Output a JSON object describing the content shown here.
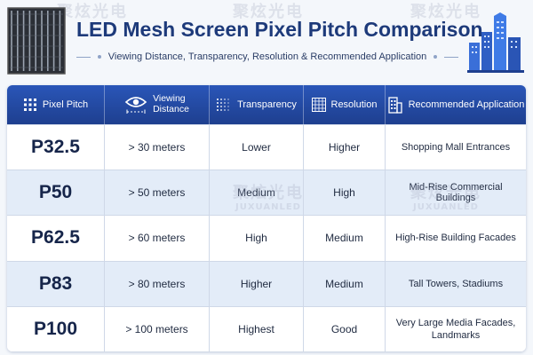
{
  "header": {
    "title": "LED Mesh Screen Pixel Pitch Comparison",
    "subtitle": "Viewing Distance, Transparency, Resolution & Recommended Application"
  },
  "watermark": {
    "zh": "聚炫光电",
    "en": "JUXUANLED"
  },
  "columns": [
    {
      "label": "Pixel Pitch",
      "icon": "led-grid-icon"
    },
    {
      "label_line1": "Viewing",
      "label_line2": "Distance",
      "icon": "eye-icon"
    },
    {
      "label": "Transparency",
      "icon": "transparency-dots-icon"
    },
    {
      "label": "Resolution",
      "icon": "resolution-grid-icon"
    },
    {
      "label": "Recommended Application",
      "icon": "building-icon"
    }
  ],
  "rows": [
    {
      "pitch": "P32.5",
      "distance": "> 30 meters",
      "transparency": "Lower",
      "resolution": "Higher",
      "application": "Shopping Mall Entrances"
    },
    {
      "pitch": "P50",
      "distance": "> 50 meters",
      "transparency": "Medium",
      "resolution": "High",
      "application": "Mid-Rise Commercial Buildings"
    },
    {
      "pitch": "P62.5",
      "distance": "> 60 meters",
      "transparency": "High",
      "resolution": "Medium",
      "application": "High-Rise Building Facades"
    },
    {
      "pitch": "P83",
      "distance": "> 80 meters",
      "transparency": "Higher",
      "resolution": "Medium",
      "application": "Tall Towers, Stadiums"
    },
    {
      "pitch": "P100",
      "distance": "> 100 meters",
      "transparency": "Highest",
      "resolution": "Good",
      "application_line1": "Very Large Media Facades,",
      "application_line2": "Landmarks"
    }
  ],
  "colors": {
    "header_blue": "#1e3f8f",
    "title_navy": "#1d3a7a",
    "alt_row": "#e3ecf8"
  }
}
